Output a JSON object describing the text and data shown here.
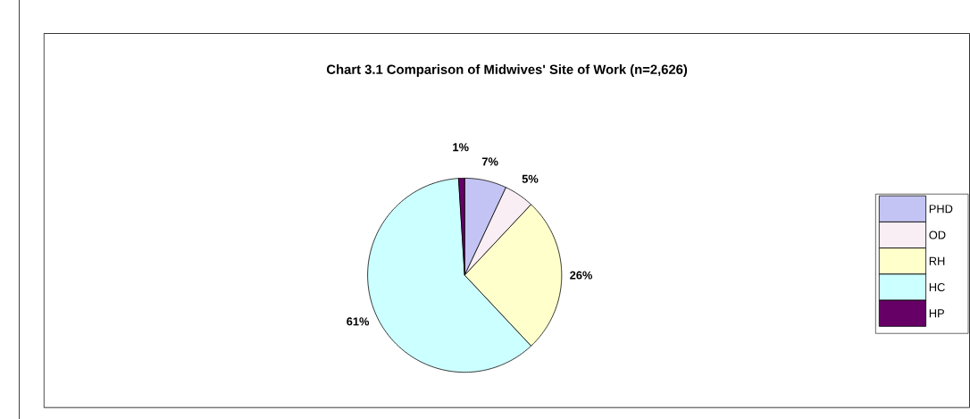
{
  "chart_data": {
    "type": "pie",
    "title": "Chart 3.1 Comparison of Midwives' Site of Work (n=2,626)",
    "categories": [
      "PHD",
      "OD",
      "RH",
      "HC",
      "HP"
    ],
    "values": [
      7,
      5,
      26,
      61,
      1
    ],
    "value_labels": [
      "7%",
      "5%",
      "26%",
      "61%",
      "1%"
    ],
    "colors": [
      "#c4c4f4",
      "#f8eef4",
      "#ffffcc",
      "#ccffff",
      "#660066"
    ],
    "legend": "right"
  }
}
